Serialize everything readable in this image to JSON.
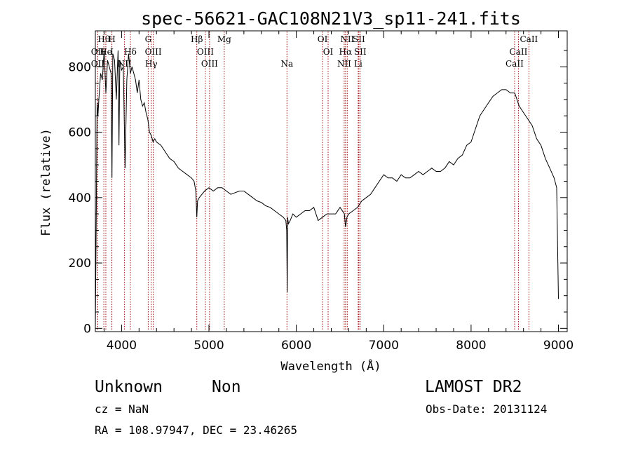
{
  "chart_data": {
    "type": "line",
    "title": "spec-56621-GAC108N21V3_sp11-241.fits",
    "xlabel": "Wavelength (Å)",
    "ylabel": "Flux (relative)",
    "xlim": [
      3700,
      9100
    ],
    "ylim": [
      -10,
      910
    ],
    "xticks": [
      4000,
      5000,
      6000,
      7000,
      8000,
      9000
    ],
    "yticks": [
      0,
      200,
      400,
      600,
      800
    ],
    "grid": false,
    "series": [
      {
        "name": "",
        "x": [
          3700,
          3710,
          3720,
          3730,
          3740,
          3760,
          3780,
          3800,
          3820,
          3840,
          3860,
          3880,
          3890,
          3900,
          3920,
          3940,
          3960,
          3970,
          3980,
          4000,
          4020,
          4040,
          4060,
          4080,
          4101,
          4120,
          4140,
          4160,
          4180,
          4200,
          4220,
          4240,
          4260,
          4280,
          4300,
          4320,
          4340,
          4360,
          4380,
          4400,
          4450,
          4500,
          4550,
          4600,
          4650,
          4700,
          4750,
          4800,
          4830,
          4850,
          4861,
          4870,
          4890,
          4920,
          4950,
          5000,
          5050,
          5100,
          5150,
          5200,
          5250,
          5300,
          5350,
          5400,
          5450,
          5500,
          5550,
          5600,
          5650,
          5700,
          5750,
          5800,
          5850,
          5880,
          5890,
          5896,
          5900,
          5910,
          5930,
          5960,
          6000,
          6050,
          6100,
          6150,
          6200,
          6250,
          6300,
          6350,
          6400,
          6450,
          6500,
          6550,
          6563,
          6580,
          6600,
          6650,
          6700,
          6750,
          6800,
          6850,
          6900,
          6950,
          7000,
          7050,
          7100,
          7150,
          7200,
          7250,
          7300,
          7350,
          7400,
          7450,
          7500,
          7550,
          7600,
          7650,
          7700,
          7750,
          7800,
          7850,
          7900,
          7950,
          8000,
          8050,
          8100,
          8150,
          8200,
          8250,
          8300,
          8350,
          8400,
          8450,
          8500,
          8550,
          8600,
          8650,
          8700,
          8750,
          8800,
          8850,
          8900,
          8950,
          8980,
          9000
        ],
        "values": [
          0,
          320,
          690,
          650,
          700,
          780,
          760,
          850,
          720,
          820,
          800,
          780,
          460,
          840,
          820,
          700,
          850,
          560,
          820,
          790,
          800,
          490,
          760,
          840,
          780,
          800,
          780,
          760,
          720,
          760,
          700,
          680,
          690,
          660,
          640,
          600,
          590,
          570,
          580,
          570,
          560,
          540,
          520,
          510,
          490,
          480,
          470,
          460,
          450,
          420,
          340,
          390,
          400,
          410,
          420,
          430,
          420,
          430,
          430,
          420,
          410,
          415,
          420,
          420,
          410,
          400,
          390,
          385,
          375,
          370,
          360,
          350,
          340,
          330,
          300,
          110,
          340,
          320,
          330,
          350,
          340,
          350,
          360,
          360,
          370,
          330,
          340,
          350,
          350,
          350,
          370,
          350,
          310,
          340,
          350,
          360,
          370,
          390,
          400,
          410,
          430,
          450,
          470,
          460,
          460,
          450,
          470,
          460,
          460,
          470,
          480,
          470,
          480,
          490,
          480,
          480,
          490,
          510,
          500,
          520,
          530,
          560,
          570,
          610,
          650,
          670,
          690,
          710,
          720,
          730,
          730,
          720,
          720,
          680,
          660,
          640,
          620,
          580,
          560,
          520,
          490,
          460,
          430,
          90
        ]
      }
    ],
    "lines": [
      {
        "label": "Hθ",
        "x": 3797,
        "row": 0
      },
      {
        "label": "H",
        "x": 3889,
        "row": 0
      },
      {
        "label": "G",
        "x": 4305,
        "row": 0
      },
      {
        "label": "Hβ",
        "x": 4861,
        "row": 0
      },
      {
        "label": "Mg",
        "x": 5175,
        "row": 0
      },
      {
        "label": "OI",
        "x": 6300,
        "row": 0
      },
      {
        "label": "NII",
        "x": 6583,
        "row": 0
      },
      {
        "label": "SII",
        "x": 6716,
        "row": 0
      },
      {
        "label": "CaII",
        "x": 8662,
        "row": 0
      },
      {
        "label": "OII",
        "x": 3727,
        "row": 1
      },
      {
        "label": "He",
        "x": 3820,
        "row": 1
      },
      {
        "label": "I",
        "x": 3889,
        "row": 1
      },
      {
        "label": "Hδ",
        "x": 4101,
        "row": 1
      },
      {
        "label": "OIII",
        "x": 4363,
        "row": 1
      },
      {
        "label": "OIII",
        "x": 4959,
        "row": 1
      },
      {
        "label": "OI",
        "x": 6364,
        "row": 1
      },
      {
        "label": "Hα",
        "x": 6563,
        "row": 1
      },
      {
        "label": "SII",
        "x": 6731,
        "row": 1
      },
      {
        "label": "CaII",
        "x": 8542,
        "row": 1
      },
      {
        "label": "OII",
        "x": 3727,
        "row": 2
      },
      {
        "label": "NII",
        "x": 4034,
        "row": 2
      },
      {
        "label": "Hγ",
        "x": 4340,
        "row": 2
      },
      {
        "label": "OIII",
        "x": 5007,
        "row": 2
      },
      {
        "label": "Na",
        "x": 5893,
        "row": 2
      },
      {
        "label": "NII",
        "x": 6548,
        "row": 2
      },
      {
        "label": "Li",
        "x": 6708,
        "row": 2
      },
      {
        "label": "CaII",
        "x": 8498,
        "row": 2
      }
    ]
  },
  "info": {
    "class": "Unknown",
    "subclass": "Non",
    "survey": "LAMOST DR2",
    "cz": "cz = NaN",
    "obs_date": "Obs-Date: 20131124",
    "coords": "RA = 108.97947, DEC =  23.46265"
  }
}
